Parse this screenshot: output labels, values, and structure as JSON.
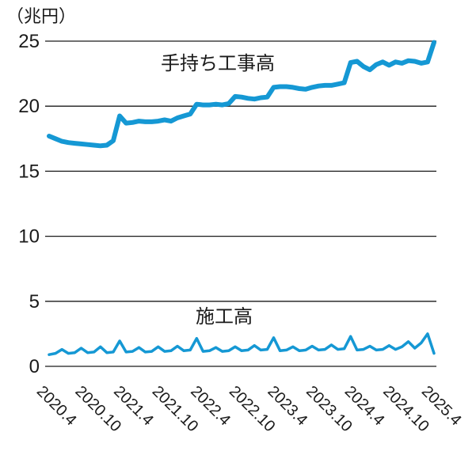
{
  "chart_data": {
    "type": "line",
    "title": "",
    "unit_label": "（兆円）",
    "ylabel": "",
    "xlabel": "",
    "ylim": [
      0,
      25.6
    ],
    "y_ticks": [
      25,
      20,
      15,
      10,
      5,
      0
    ],
    "grid": "horizontal-only",
    "legend_position": "inline-labels",
    "x_tick_labels": [
      "2020.4",
      "2020.10",
      "2021.4",
      "2021.10",
      "2022.4",
      "2022.10",
      "2023.4",
      "2023.10",
      "2024.4",
      "2024.10",
      "2025.4"
    ],
    "x": [
      "2020.4",
      "2020.5",
      "2020.6",
      "2020.7",
      "2020.8",
      "2020.9",
      "2020.10",
      "2020.11",
      "2020.12",
      "2021.1",
      "2021.2",
      "2021.3",
      "2021.4",
      "2021.5",
      "2021.6",
      "2021.7",
      "2021.8",
      "2021.9",
      "2021.10",
      "2021.11",
      "2021.12",
      "2022.1",
      "2022.2",
      "2022.3",
      "2022.4",
      "2022.5",
      "2022.6",
      "2022.7",
      "2022.8",
      "2022.9",
      "2022.10",
      "2022.11",
      "2022.12",
      "2023.1",
      "2023.2",
      "2023.3",
      "2023.4",
      "2023.5",
      "2023.6",
      "2023.7",
      "2023.8",
      "2023.9",
      "2023.10",
      "2023.11",
      "2023.12",
      "2024.1",
      "2024.2",
      "2024.3",
      "2024.4",
      "2024.5",
      "2024.6",
      "2024.7",
      "2024.8",
      "2024.9",
      "2024.10",
      "2024.11",
      "2024.12",
      "2025.1",
      "2025.2",
      "2025.3",
      "2025.4"
    ],
    "series": [
      {
        "name": "手持ち工事高",
        "values": [
          17.7,
          17.5,
          17.3,
          17.2,
          17.15,
          17.1,
          17.05,
          17.0,
          16.95,
          17.0,
          17.35,
          19.25,
          18.7,
          18.75,
          18.85,
          18.8,
          18.8,
          18.85,
          18.95,
          18.85,
          19.1,
          19.25,
          19.4,
          20.15,
          20.1,
          20.1,
          20.15,
          20.1,
          20.2,
          20.75,
          20.7,
          20.6,
          20.55,
          20.65,
          20.7,
          21.45,
          21.5,
          21.5,
          21.45,
          21.35,
          21.3,
          21.45,
          21.55,
          21.6,
          21.6,
          21.7,
          21.8,
          23.35,
          23.45,
          23.05,
          22.8,
          23.2,
          23.4,
          23.15,
          23.4,
          23.3,
          23.5,
          23.45,
          23.3,
          23.4,
          24.9
        ]
      },
      {
        "name": "施工高",
        "values": [
          0.9,
          1.0,
          1.3,
          1.0,
          1.05,
          1.4,
          1.05,
          1.1,
          1.5,
          1.05,
          1.1,
          1.95,
          1.1,
          1.15,
          1.45,
          1.1,
          1.15,
          1.5,
          1.15,
          1.2,
          1.55,
          1.2,
          1.25,
          2.15,
          1.15,
          1.2,
          1.45,
          1.15,
          1.2,
          1.5,
          1.2,
          1.25,
          1.6,
          1.25,
          1.3,
          2.2,
          1.2,
          1.25,
          1.5,
          1.2,
          1.25,
          1.55,
          1.25,
          1.3,
          1.65,
          1.3,
          1.35,
          2.3,
          1.25,
          1.3,
          1.55,
          1.25,
          1.3,
          1.6,
          1.3,
          1.5,
          1.9,
          1.4,
          1.8,
          2.5,
          1.0
        ]
      }
    ],
    "colors": {
      "line": "#1598d4",
      "grid": "#1a1a1a",
      "text": "#1a1a1a"
    }
  }
}
